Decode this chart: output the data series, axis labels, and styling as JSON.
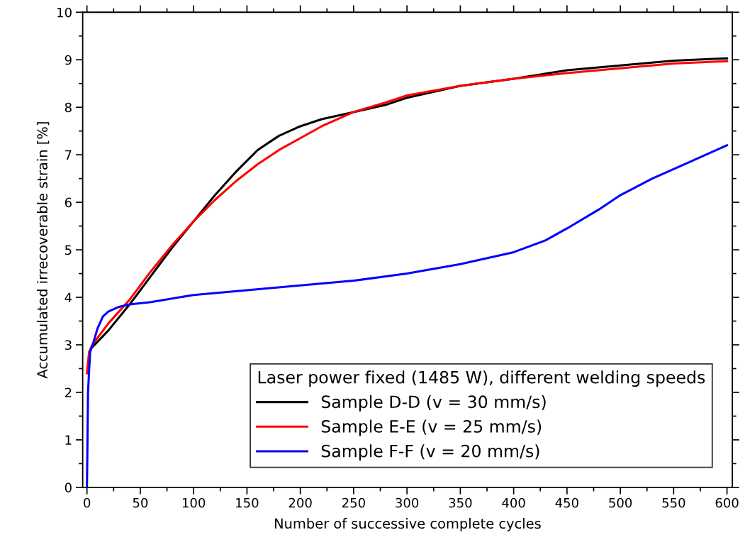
{
  "chart_data": {
    "type": "line",
    "xlabel": "Number of successive complete cycles",
    "ylabel": "Accumulated irrecoverable strain [%]",
    "legend_title": "Laser power fixed (1485 W), different welding speeds",
    "xlim": [
      -4,
      605
    ],
    "ylim": [
      0,
      10
    ],
    "xticks": [
      0,
      50,
      100,
      150,
      200,
      250,
      300,
      350,
      400,
      450,
      500,
      550,
      600
    ],
    "yticks": [
      0,
      1,
      2,
      3,
      4,
      5,
      6,
      7,
      8,
      9,
      10
    ],
    "grid": false,
    "legend": "bottom right",
    "marker": "none",
    "line_style": "solid",
    "series": [
      {
        "name": "Sample D-D (v = 30 mm/s)",
        "color": "#000000",
        "x": [
          5,
          20,
          40,
          60,
          80,
          100,
          120,
          140,
          160,
          180,
          200,
          220,
          250,
          280,
          300,
          350,
          400,
          450,
          500,
          550,
          600
        ],
        "values": [
          2.95,
          3.3,
          3.85,
          4.45,
          5.05,
          5.6,
          6.15,
          6.65,
          7.1,
          7.4,
          7.6,
          7.75,
          7.9,
          8.05,
          8.2,
          8.45,
          8.6,
          8.78,
          8.88,
          8.98,
          9.03
        ]
      },
      {
        "name": "Sample E-E (v = 25 mm/s)",
        "color": "#ff0000",
        "x": [
          0,
          2,
          5,
          20,
          40,
          60,
          80,
          100,
          120,
          140,
          160,
          180,
          200,
          220,
          250,
          280,
          300,
          350,
          400,
          450,
          500,
          550,
          600
        ],
        "values": [
          2.4,
          2.85,
          3.0,
          3.45,
          3.95,
          4.55,
          5.1,
          5.6,
          6.05,
          6.45,
          6.8,
          7.1,
          7.35,
          7.6,
          7.9,
          8.1,
          8.25,
          8.45,
          8.6,
          8.72,
          8.82,
          8.92,
          8.97
        ]
      },
      {
        "name": "Sample F-F (v = 20 mm/s)",
        "color": "#0000ff",
        "x": [
          0,
          1,
          2,
          3,
          6,
          10,
          15,
          20,
          30,
          40,
          60,
          100,
          150,
          200,
          250,
          300,
          350,
          400,
          430,
          450,
          480,
          500,
          530,
          560,
          600
        ],
        "values": [
          0,
          2.0,
          2.45,
          2.85,
          3.05,
          3.35,
          3.6,
          3.7,
          3.8,
          3.85,
          3.9,
          4.05,
          4.15,
          4.25,
          4.35,
          4.5,
          4.7,
          4.95,
          5.2,
          5.45,
          5.85,
          6.15,
          6.5,
          6.8,
          7.2
        ]
      }
    ]
  }
}
